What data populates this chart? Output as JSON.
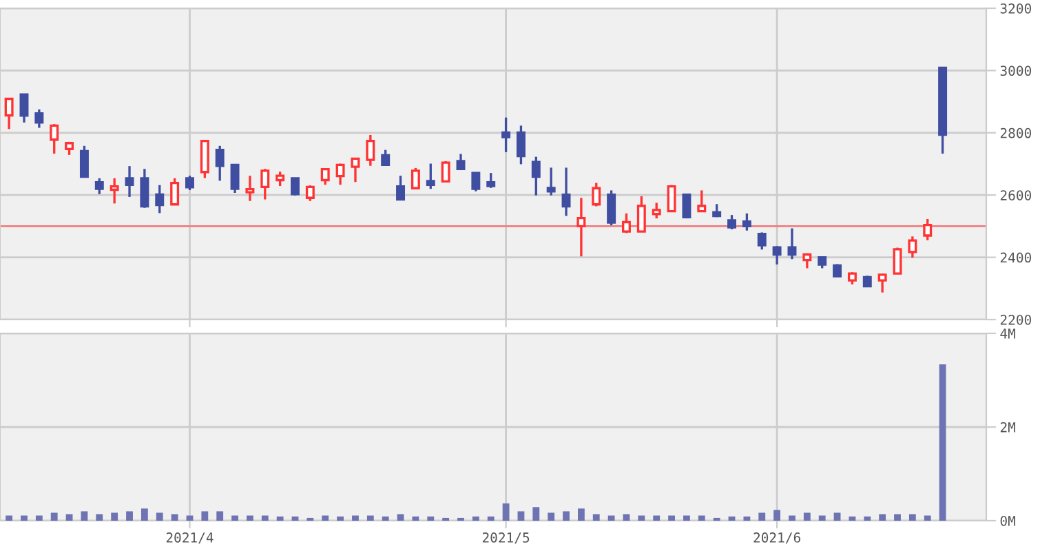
{
  "chart_data": [
    {
      "type": "candlestick",
      "categories": [
        null,
        null,
        null,
        null,
        null,
        null,
        null,
        null,
        null,
        null,
        null,
        null,
        "2021/4",
        null,
        null,
        null,
        null,
        null,
        null,
        null,
        null,
        null,
        null,
        null,
        null,
        null,
        null,
        null,
        null,
        null,
        null,
        null,
        null,
        "2021/5",
        null,
        null,
        null,
        null,
        null,
        null,
        null,
        null,
        null,
        null,
        null,
        null,
        null,
        null,
        null,
        null,
        null,
        "2021/6",
        null,
        null,
        null,
        null,
        null,
        null,
        null,
        null,
        null,
        null,
        null
      ],
      "ohlc": [
        [
          2856,
          2909,
          2812,
          2909
        ],
        [
          2923,
          2923,
          2833,
          2855
        ],
        [
          2862,
          2875,
          2816,
          2833
        ],
        [
          2778,
          2828,
          2733,
          2823
        ],
        [
          2748,
          2771,
          2729,
          2767
        ],
        [
          2741,
          2758,
          2659,
          2659
        ],
        [
          2641,
          2654,
          2603,
          2620
        ],
        [
          2617,
          2654,
          2573,
          2628
        ],
        [
          2654,
          2693,
          2594,
          2633
        ],
        [
          2654,
          2684,
          2559,
          2564
        ],
        [
          2602,
          2632,
          2542,
          2568
        ],
        [
          2570,
          2654,
          2570,
          2639
        ],
        [
          2654,
          2662,
          2616,
          2625
        ],
        [
          2674,
          2774,
          2655,
          2774
        ],
        [
          2745,
          2758,
          2646,
          2694
        ],
        [
          2697,
          2697,
          2607,
          2620
        ],
        [
          2609,
          2662,
          2581,
          2619
        ],
        [
          2626,
          2684,
          2586,
          2678
        ],
        [
          2648,
          2675,
          2629,
          2662
        ],
        [
          2654,
          2654,
          2599,
          2603
        ],
        [
          2591,
          2631,
          2581,
          2626
        ],
        [
          2648,
          2683,
          2633,
          2683
        ],
        [
          2661,
          2701,
          2633,
          2697
        ],
        [
          2691,
          2717,
          2642,
          2717
        ],
        [
          2713,
          2793,
          2694,
          2774
        ],
        [
          2728,
          2745,
          2694,
          2697
        ],
        [
          2628,
          2662,
          2586,
          2586
        ],
        [
          2622,
          2687,
          2622,
          2678
        ],
        [
          2645,
          2701,
          2620,
          2633
        ],
        [
          2644,
          2709,
          2644,
          2704
        ],
        [
          2709,
          2732,
          2680,
          2684
        ],
        [
          2671,
          2671,
          2612,
          2620
        ],
        [
          2641,
          2671,
          2623,
          2629
        ],
        [
          2801,
          2849,
          2738,
          2786
        ],
        [
          2801,
          2823,
          2699,
          2725
        ],
        [
          2706,
          2723,
          2599,
          2659
        ],
        [
          2623,
          2688,
          2599,
          2612
        ],
        [
          2601,
          2688,
          2533,
          2564
        ],
        [
          2500,
          2591,
          2403,
          2526
        ],
        [
          2570,
          2639,
          2564,
          2622
        ],
        [
          2601,
          2615,
          2503,
          2512
        ],
        [
          2483,
          2541,
          2478,
          2513
        ],
        [
          2483,
          2596,
          2483,
          2565
        ],
        [
          2539,
          2575,
          2525,
          2552
        ],
        [
          2548,
          2632,
          2548,
          2628
        ],
        [
          2601,
          2601,
          2525,
          2529
        ],
        [
          2548,
          2615,
          2548,
          2565
        ],
        [
          2545,
          2571,
          2529,
          2533
        ],
        [
          2519,
          2536,
          2490,
          2496
        ],
        [
          2515,
          2541,
          2486,
          2500
        ],
        [
          2475,
          2480,
          2425,
          2439
        ],
        [
          2432,
          2436,
          2377,
          2409
        ],
        [
          2432,
          2493,
          2394,
          2409
        ],
        [
          2391,
          2413,
          2365,
          2409
        ],
        [
          2400,
          2400,
          2365,
          2377
        ],
        [
          2374,
          2378,
          2339,
          2339
        ],
        [
          2326,
          2352,
          2313,
          2348
        ],
        [
          2336,
          2341,
          2307,
          2307
        ],
        [
          2326,
          2348,
          2287,
          2344
        ],
        [
          2348,
          2431,
          2348,
          2426
        ],
        [
          2417,
          2467,
          2399,
          2454
        ],
        [
          2470,
          2523,
          2455,
          2504
        ],
        [
          3009,
          3009,
          2733,
          2794
        ]
      ],
      "colors": [
        "#ff3333",
        "#3f4ea1",
        "#3f4ea1",
        "#ff3333",
        "#ff3333",
        "#3f4ea1",
        "#3f4ea1",
        "#ff3333",
        "#3f4ea1",
        "#3f4ea1",
        "#3f4ea1",
        "#ff3333",
        "#3f4ea1",
        "#ff3333",
        "#3f4ea1",
        "#3f4ea1",
        "#ff3333",
        "#ff3333",
        "#ff3333",
        "#3f4ea1",
        "#ff3333",
        "#ff3333",
        "#ff3333",
        "#ff3333",
        "#ff3333",
        "#3f4ea1",
        "#3f4ea1",
        "#ff3333",
        "#3f4ea1",
        "#ff3333",
        "#3f4ea1",
        "#3f4ea1",
        "#3f4ea1",
        "#3f4ea1",
        "#3f4ea1",
        "#3f4ea1",
        "#3f4ea1",
        "#3f4ea1",
        "#ff3333",
        "#ff3333",
        "#3f4ea1",
        "#ff3333",
        "#ff3333",
        "#ff3333",
        "#ff3333",
        "#3f4ea1",
        "#ff3333",
        "#3f4ea1",
        "#3f4ea1",
        "#3f4ea1",
        "#3f4ea1",
        "#3f4ea1",
        "#3f4ea1",
        "#ff3333",
        "#3f4ea1",
        "#3f4ea1",
        "#ff3333",
        "#3f4ea1",
        "#ff3333",
        "#ff3333",
        "#ff3333",
        "#ff3333",
        "#3f4ea1"
      ],
      "ylim": [
        2200,
        3200
      ],
      "yticks": [
        2200,
        2400,
        2600,
        2800,
        3000,
        3200
      ],
      "grid": true,
      "tick_labels": "y",
      "ref_lines": [
        {
          "axis": "y",
          "value": 2500,
          "color": "#f08080"
        }
      ]
    },
    {
      "type": "bar",
      "categories": [
        null,
        null,
        null,
        null,
        null,
        null,
        null,
        null,
        null,
        null,
        null,
        null,
        "2021/4",
        null,
        null,
        null,
        null,
        null,
        null,
        null,
        null,
        null,
        null,
        null,
        null,
        null,
        null,
        null,
        null,
        null,
        null,
        null,
        null,
        "2021/5",
        null,
        null,
        null,
        null,
        null,
        null,
        null,
        null,
        null,
        null,
        null,
        null,
        null,
        null,
        null,
        null,
        null,
        "2021/6",
        null,
        null,
        null,
        null,
        null,
        null,
        null,
        null,
        null,
        null,
        null
      ],
      "values": [
        0.11,
        0.11,
        0.11,
        0.17,
        0.14,
        0.2,
        0.14,
        0.17,
        0.2,
        0.26,
        0.17,
        0.14,
        0.11,
        0.2,
        0.2,
        0.11,
        0.11,
        0.11,
        0.09,
        0.09,
        0.06,
        0.11,
        0.09,
        0.11,
        0.11,
        0.09,
        0.14,
        0.09,
        0.09,
        0.06,
        0.06,
        0.09,
        0.09,
        0.37,
        0.2,
        0.29,
        0.17,
        0.2,
        0.26,
        0.14,
        0.11,
        0.14,
        0.11,
        0.11,
        0.11,
        0.11,
        0.11,
        0.06,
        0.09,
        0.09,
        0.17,
        0.23,
        0.11,
        0.17,
        0.11,
        0.17,
        0.09,
        0.09,
        0.14,
        0.14,
        0.14,
        0.11,
        3.34
      ],
      "color": "#6e74b3",
      "ylim": [
        0,
        4
      ],
      "yticks": [
        {
          "value": 0,
          "label": "0M"
        },
        {
          "value": 2,
          "label": "2M"
        },
        {
          "value": 4,
          "label": "4M"
        }
      ],
      "grid": true
    }
  ]
}
